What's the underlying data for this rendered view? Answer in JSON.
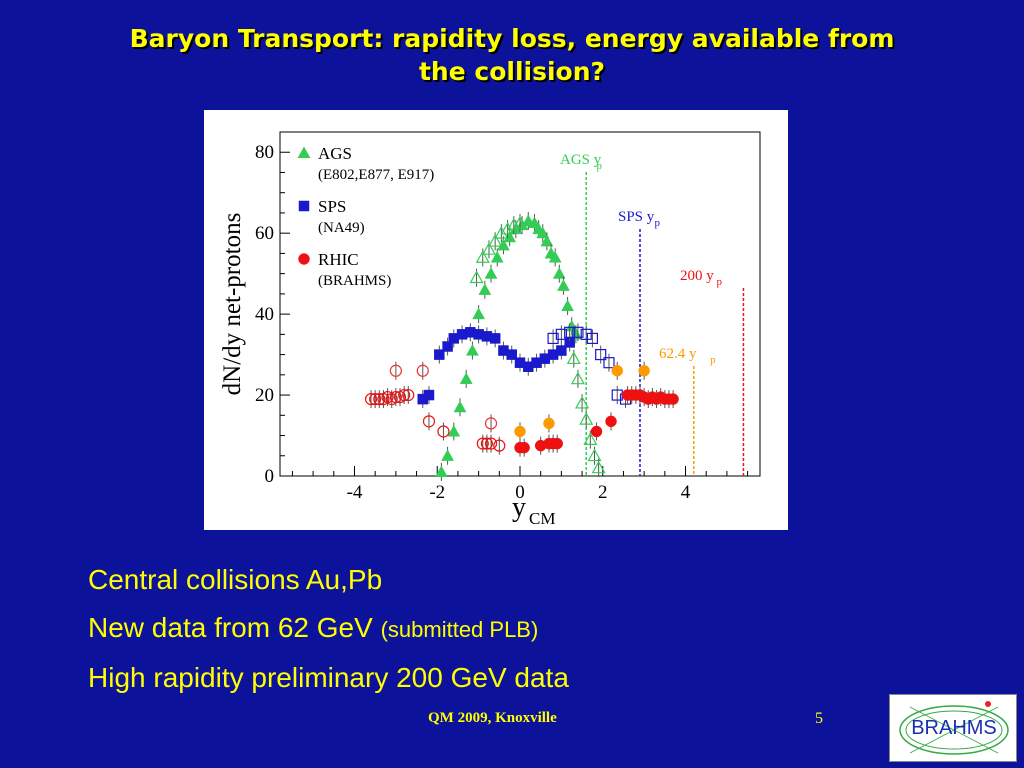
{
  "slide": {
    "title_line1": "Baryon Transport: rapidity loss, energy available from",
    "title_line2": "the collision?",
    "bullets": [
      {
        "text": "Central collisions Au,Pb",
        "note": ""
      },
      {
        "text": "New data from 62 GeV ",
        "note": "(submitted PLB)"
      },
      {
        "text": "High rapidity preliminary 200 GeV data",
        "note": ""
      }
    ],
    "footer": "QM 2009, Knoxville",
    "page_number": "5",
    "logo_text": "BRAHMS"
  },
  "colors": {
    "background": "#0c139a",
    "text": "#ffff00",
    "ags": "#33cc55",
    "sps": "#1a1acc",
    "rhic200": "#ee1111",
    "rhic62": "#ff9900"
  },
  "chart_data": {
    "type": "scatter",
    "xlabel": "y",
    "xlabel_sub": "CM",
    "ylabel": "dN/dy net-protons",
    "xlim": [
      -5.8,
      5.8
    ],
    "ylim": [
      0,
      85
    ],
    "xticks": [
      -4,
      -2,
      0,
      2,
      4
    ],
    "yticks": [
      0,
      20,
      40,
      60,
      80
    ],
    "legend": {
      "position": "top-left",
      "entries": [
        {
          "marker": "triangle",
          "color": "#33cc55",
          "label": "AGS",
          "sublabel": "(E802,E877, E917)"
        },
        {
          "marker": "square",
          "color": "#1a1acc",
          "label": "SPS",
          "sublabel": "(NA49)"
        },
        {
          "marker": "circle",
          "color": "#ee1111",
          "label": "RHIC",
          "sublabel": "(BRAHMS)"
        }
      ]
    },
    "beam_rapidity_lines": [
      {
        "label": "AGS y",
        "sub": "p",
        "x": 1.6,
        "color": "#33cc55"
      },
      {
        "label": "SPS y",
        "sub": "p",
        "x": 2.9,
        "color": "#1a1acc"
      },
      {
        "label": "200 y",
        "sub": "p",
        "x": 5.4,
        "color": "#ee1111"
      },
      {
        "label": "62.4  y",
        "sub": "p",
        "x": 4.2,
        "color": "#ff9900"
      }
    ],
    "series": [
      {
        "name": "AGS",
        "marker": "triangle",
        "color": "#33cc55",
        "filled": true,
        "points": [
          [
            -1.9,
            1
          ],
          [
            -1.75,
            5
          ],
          [
            -1.6,
            11
          ],
          [
            -1.45,
            17
          ],
          [
            -1.3,
            24
          ],
          [
            -1.15,
            31
          ],
          [
            -1.0,
            40
          ],
          [
            -0.85,
            46
          ],
          [
            -0.7,
            50
          ],
          [
            -0.55,
            54
          ],
          [
            -0.4,
            57
          ],
          [
            -0.25,
            59
          ],
          [
            -0.1,
            61
          ],
          [
            0.05,
            62
          ],
          [
            0.2,
            63
          ],
          [
            0.35,
            62.5
          ],
          [
            0.45,
            61
          ],
          [
            0.55,
            60
          ],
          [
            0.65,
            58
          ],
          [
            0.75,
            55
          ],
          [
            0.85,
            54
          ],
          [
            0.95,
            50
          ],
          [
            1.05,
            47
          ],
          [
            1.15,
            42
          ],
          [
            1.25,
            37
          ],
          [
            1.35,
            35
          ]
        ]
      },
      {
        "name": "",
        "marker": "triangle",
        "color": "#33cc55",
        "filled": false,
        "points": [
          [
            -1.05,
            49
          ],
          [
            -0.9,
            54
          ],
          [
            -0.75,
            56
          ],
          [
            -0.6,
            58
          ],
          [
            -0.45,
            60
          ],
          [
            -0.3,
            61
          ],
          [
            -0.15,
            62
          ],
          [
            0.0,
            62.5
          ],
          [
            1.3,
            29
          ],
          [
            1.4,
            24
          ],
          [
            1.5,
            18
          ],
          [
            1.6,
            14
          ],
          [
            1.7,
            9
          ],
          [
            1.8,
            5
          ],
          [
            1.9,
            2
          ]
        ]
      },
      {
        "name": "SPS",
        "marker": "square",
        "color": "#1a1acc",
        "filled": true,
        "points": [
          [
            -2.35,
            19
          ],
          [
            -2.2,
            20
          ],
          [
            -1.95,
            30
          ],
          [
            -1.75,
            32
          ],
          [
            -1.6,
            34
          ],
          [
            -1.4,
            35
          ],
          [
            -1.2,
            35.5
          ],
          [
            -1.0,
            35
          ],
          [
            -0.8,
            34.5
          ],
          [
            -0.6,
            34
          ],
          [
            -0.4,
            31
          ],
          [
            -0.2,
            30
          ],
          [
            0.0,
            28
          ],
          [
            0.2,
            27
          ],
          [
            0.4,
            28
          ],
          [
            0.6,
            29
          ],
          [
            0.8,
            30
          ],
          [
            1.0,
            31
          ],
          [
            1.2,
            33
          ]
        ]
      },
      {
        "name": "",
        "marker": "square",
        "color": "#1a1acc",
        "filled": false,
        "points": [
          [
            0.8,
            34
          ],
          [
            1.0,
            35
          ],
          [
            1.2,
            35.5
          ],
          [
            1.4,
            35.5
          ],
          [
            1.6,
            35
          ],
          [
            1.75,
            34
          ],
          [
            1.95,
            30
          ],
          [
            2.15,
            28
          ],
          [
            2.35,
            20
          ],
          [
            2.55,
            19
          ]
        ]
      },
      {
        "name": "RHIC",
        "marker": "circle",
        "color": "#ee1111",
        "filled": true,
        "points": [
          [
            0.0,
            7
          ],
          [
            0.1,
            7
          ],
          [
            0.5,
            7.5
          ],
          [
            0.7,
            8
          ],
          [
            0.8,
            8
          ],
          [
            0.9,
            8
          ],
          [
            1.85,
            11
          ],
          [
            2.2,
            13.5
          ],
          [
            2.6,
            20
          ],
          [
            2.7,
            20
          ],
          [
            2.8,
            20
          ],
          [
            2.9,
            20
          ],
          [
            3.0,
            19.5
          ],
          [
            3.1,
            19
          ],
          [
            3.2,
            19.5
          ],
          [
            3.3,
            19
          ],
          [
            3.4,
            19.5
          ],
          [
            3.5,
            19
          ],
          [
            3.6,
            19
          ],
          [
            3.7,
            19
          ]
        ]
      },
      {
        "name": "",
        "marker": "circle",
        "color": "#ee1111",
        "filled": false,
        "points": [
          [
            -3.6,
            19
          ],
          [
            -3.5,
            19
          ],
          [
            -3.4,
            19
          ],
          [
            -3.3,
            19
          ],
          [
            -3.2,
            19.5
          ],
          [
            -3.1,
            19
          ],
          [
            -3.0,
            19.5
          ],
          [
            -2.9,
            19.5
          ],
          [
            -2.8,
            20
          ],
          [
            -2.7,
            20
          ],
          [
            -2.2,
            13.5
          ],
          [
            -1.85,
            11
          ],
          [
            -0.9,
            8
          ],
          [
            -0.8,
            8
          ],
          [
            -0.7,
            8
          ],
          [
            -0.5,
            7.5
          ]
        ]
      },
      {
        "name": "",
        "marker": "circle",
        "color": "#ff9900",
        "filled": true,
        "points": [
          [
            0.0,
            11
          ],
          [
            0.7,
            13
          ],
          [
            2.35,
            26
          ],
          [
            3.0,
            26
          ]
        ]
      },
      {
        "name": "",
        "marker": "circle",
        "color": "#ee3333",
        "filled": false,
        "points": [
          [
            -3.0,
            26
          ],
          [
            -2.35,
            26
          ],
          [
            -0.7,
            13
          ]
        ]
      }
    ]
  }
}
